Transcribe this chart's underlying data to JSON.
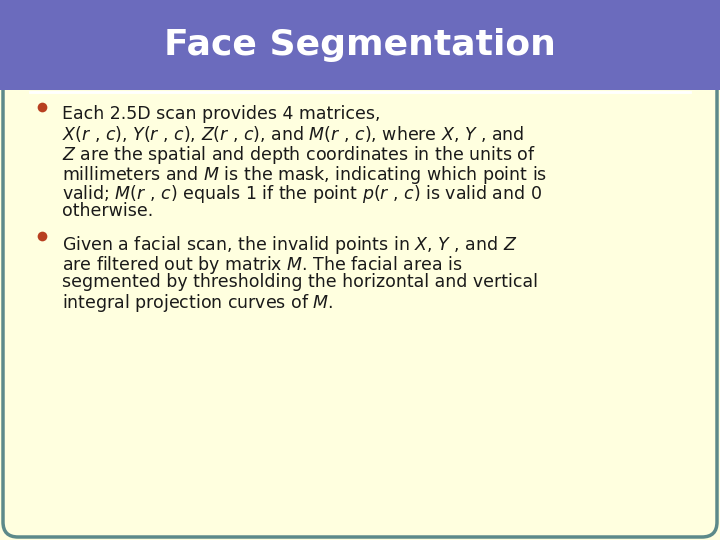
{
  "title": "Face Segmentation",
  "title_color": "#ffffff",
  "title_bg_color": "#6b6bbd",
  "title_fontsize": 26,
  "body_bg_color": "#ffffdf",
  "outer_bg_color": "#ffffdf",
  "border_color": "#5c8a8a",
  "bullet_color": "#b84020",
  "bullet1_lines": [
    "Each 2.5D scan provides 4 matrices,",
    "$\\mathit{X}$($r$ , $c$), $\\mathit{Y}$($r$ , $c$), $Z$($r$ , $c$), and $\\mathit{M}$($r$ , $c$), where $\\mathit{X}$, $Y$ , and",
    "$Z$ are the spatial and depth coordinates in the units of",
    "millimeters and $\\mathit{M}$ is the mask, indicating which point is",
    "valid; $\\mathit{M}$($r$ , $c$) equals 1 if the point $p$($r$ , $c$) is valid and 0",
    "otherwise."
  ],
  "bullet2_lines": [
    "Given a facial scan, the invalid points in $\\mathit{X}$, $Y$ , and $Z$",
    "are filtered out by matrix $\\mathit{M}$. The facial area is",
    "segmented by thresholding the horizontal and vertical",
    "integral projection curves of $\\mathit{M}$."
  ],
  "text_color": "#1a1a1a",
  "text_fontsize": 12.5,
  "line_color": "#ffffff",
  "figsize": [
    7.2,
    5.4
  ],
  "dpi": 100
}
